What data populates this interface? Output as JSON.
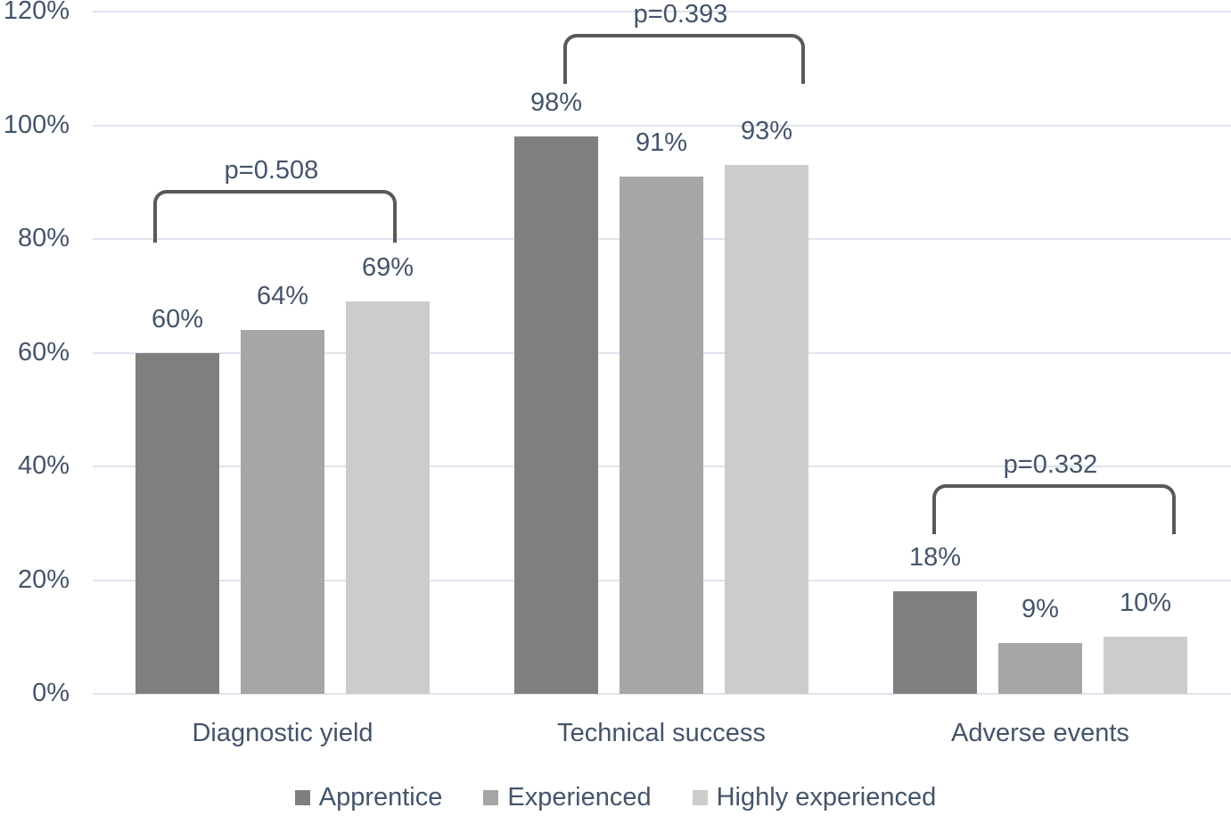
{
  "colors": {
    "background": "#FFFFFF",
    "text": "#44546A",
    "gridline": "#DEE4EE",
    "bracket": "#595959"
  },
  "chart_data": {
    "type": "bar",
    "title": "",
    "xlabel": "",
    "ylabel": "",
    "grid": true,
    "legend_position": "bottom",
    "categories": [
      "Diagnostic yield",
      "Technical success",
      "Adverse events"
    ],
    "series": [
      {
        "name": "Apprentice",
        "color": "#7F7F7F",
        "values": [
          60,
          98,
          18
        ],
        "labels": [
          "60%",
          "98%",
          "18%"
        ]
      },
      {
        "name": "Experienced",
        "color": "#A6A6A6",
        "values": [
          64,
          91,
          9
        ],
        "labels": [
          "64%",
          "91%",
          "9%"
        ]
      },
      {
        "name": "Highly experienced",
        "color": "#CCCCCC",
        "values": [
          69,
          93,
          10
        ],
        "labels": [
          "69%",
          "93%",
          "10%"
        ]
      }
    ],
    "y_axis": {
      "min": 0,
      "max": 120,
      "step": 20,
      "unit": "%",
      "tick_values": [
        0,
        20,
        40,
        60,
        80,
        100,
        120
      ],
      "tick_labels": [
        "0%",
        "20%",
        "40%",
        "60%",
        "80%",
        "100%",
        "120%"
      ]
    },
    "annotations": [
      {
        "category": "Diagnostic yield",
        "label": "p=0.508"
      },
      {
        "category": "Technical success",
        "label": "p=0.393"
      },
      {
        "category": "Adverse events",
        "label": "p=0.332"
      }
    ]
  }
}
